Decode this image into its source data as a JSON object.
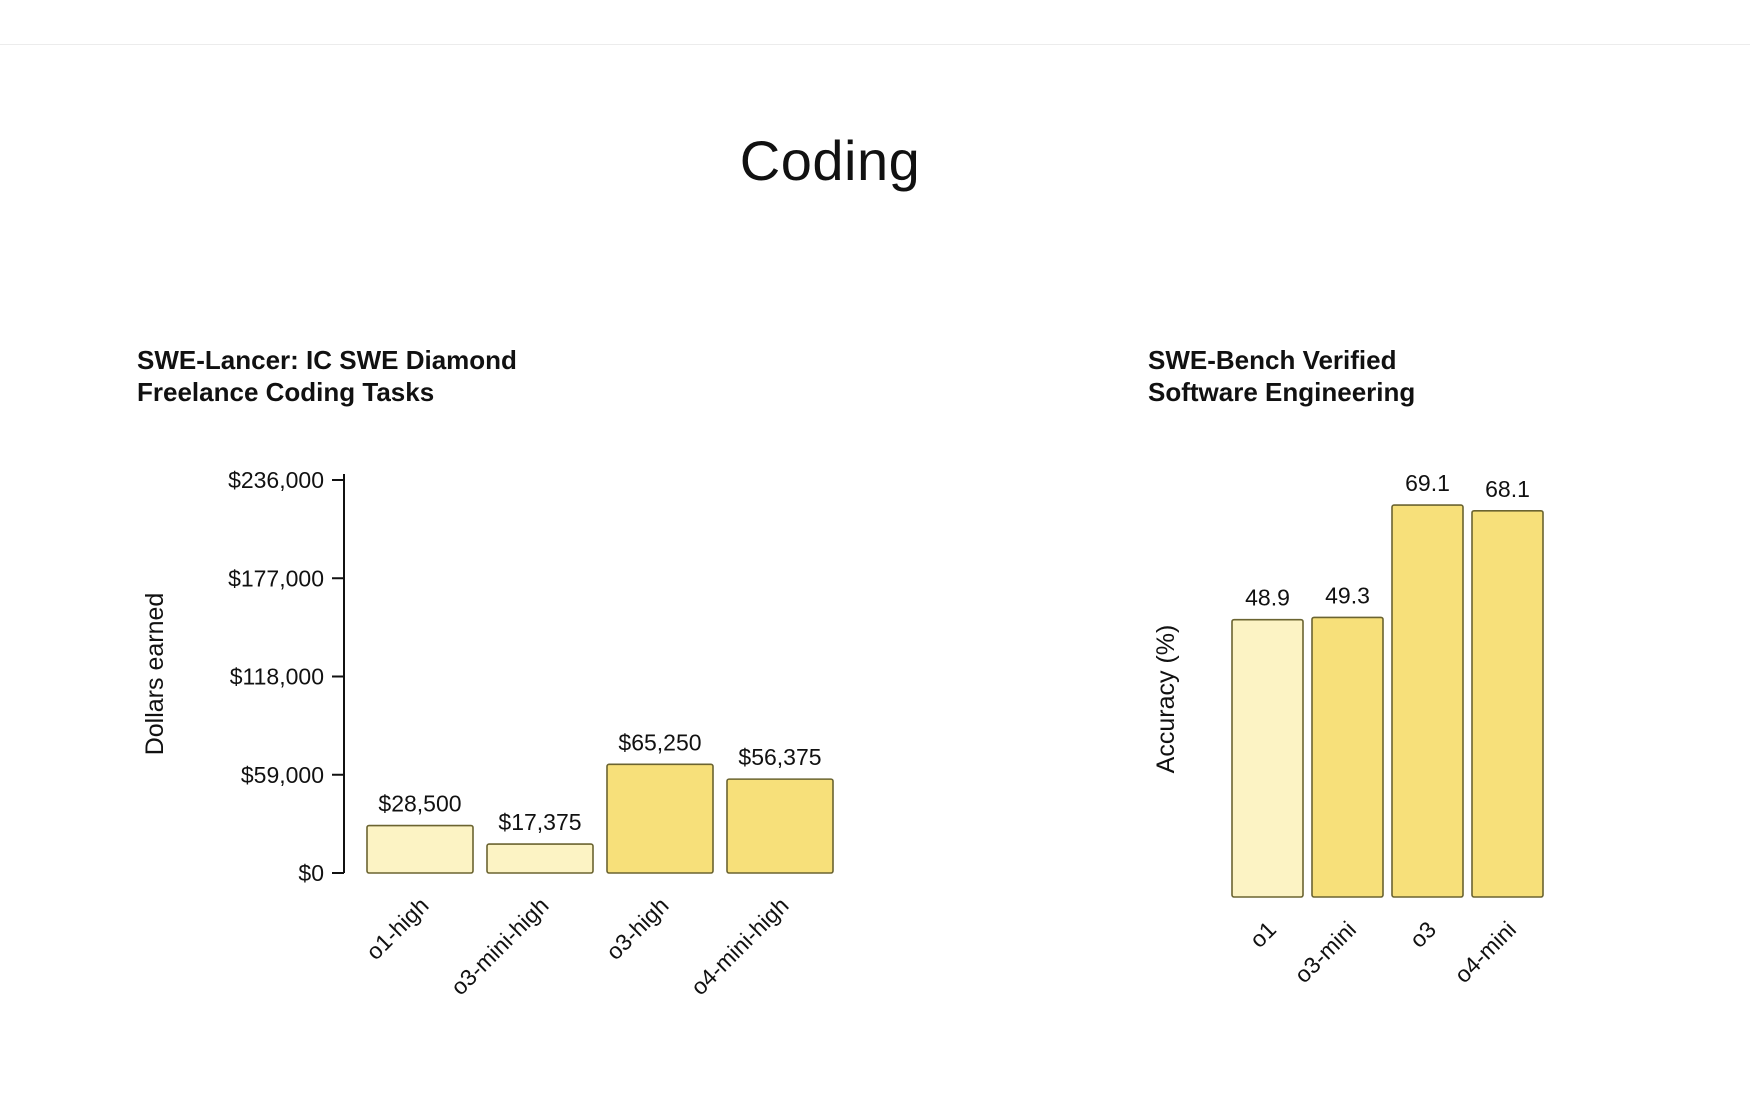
{
  "page": {
    "section_title": "Coding"
  },
  "chart_data": [
    {
      "type": "bar",
      "title_line1": "SWE-Lancer: IC SWE Diamond",
      "title_line2": "Freelance Coding Tasks",
      "ylabel": "Dollars earned",
      "xlabel": "",
      "categories": [
        "o1-high",
        "o3-mini-high",
        "o3-high",
        "o4-mini-high"
      ],
      "values": [
        28500,
        17375,
        65250,
        56375
      ],
      "value_labels": [
        "$28,500",
        "$17,375",
        "$65,250",
        "$56,375"
      ],
      "ylim": [
        0,
        236000
      ],
      "yticks": [
        0,
        59000,
        118000,
        177000,
        236000
      ],
      "ytick_labels": [
        "$0",
        "$59,000",
        "$118,000",
        "$177,000",
        "$236,000"
      ],
      "grid": false,
      "show_y_axis": true,
      "bar_colors": [
        "#fcf3c4",
        "#fcf3c4",
        "#f7e07a",
        "#f7e07a"
      ],
      "bar_stroke": "#6b6431"
    },
    {
      "type": "bar",
      "title_line1": "SWE-Bench Verified",
      "title_line2": "Software Engineering",
      "ylabel": "Accuracy (%)",
      "xlabel": "",
      "categories": [
        "o1",
        "o3-mini",
        "o3",
        "o4-mini"
      ],
      "values": [
        48.9,
        49.3,
        69.1,
        68.1
      ],
      "value_labels": [
        "48.9",
        "49.3",
        "69.1",
        "68.1"
      ],
      "ylim": [
        0,
        70
      ],
      "grid": false,
      "show_y_axis": false,
      "bar_colors": [
        "#fcf3c4",
        "#f7e07a",
        "#f7e07a",
        "#f7e07a"
      ],
      "bar_stroke": "#6b6431"
    }
  ]
}
